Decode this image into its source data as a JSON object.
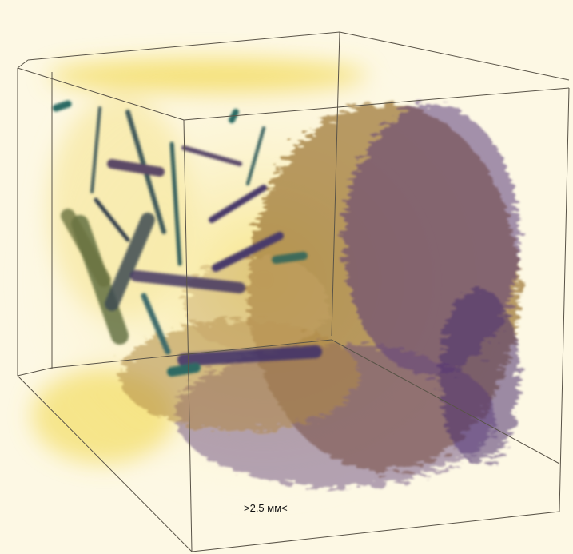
{
  "scale_label": ">2.5 мм<"
}
